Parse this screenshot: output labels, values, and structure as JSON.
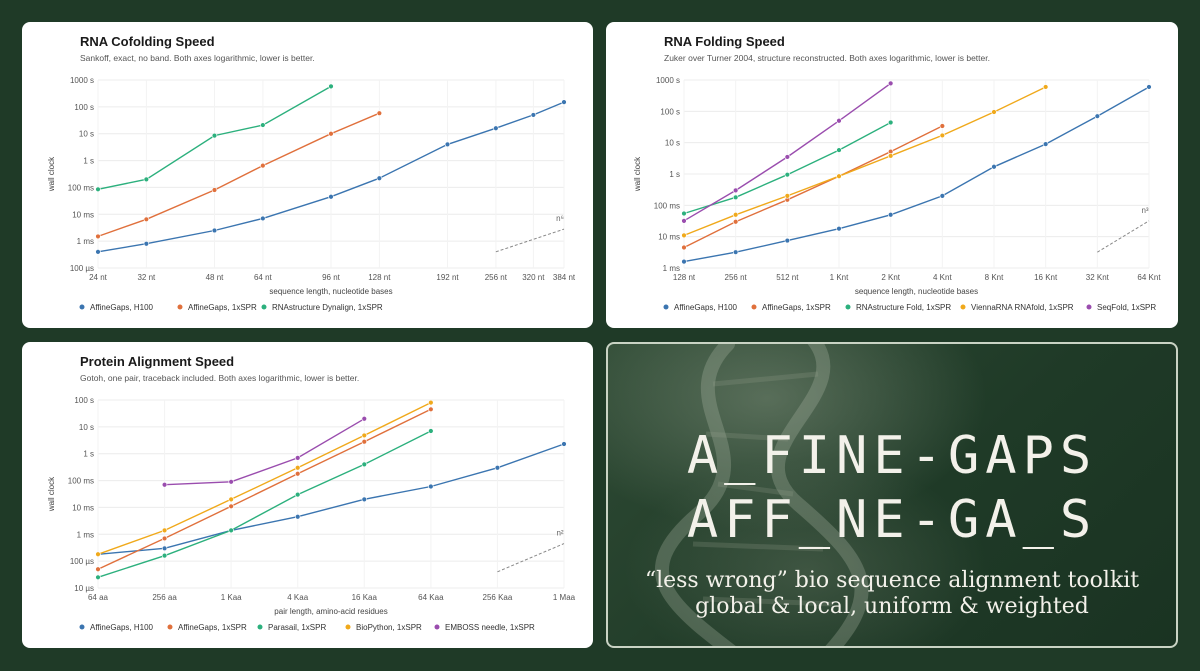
{
  "colors": {
    "blue": "#3b75b0",
    "orange": "#e0703c",
    "green": "#2cb07d",
    "yellow": "#f0a91b",
    "purple": "#9a4dae",
    "background": "#1f3a27"
  },
  "banner": {
    "line1": "A_FINE-GAPS",
    "line2": "AFF_NE-GA_S",
    "line3": "“less wrong” bio sequence alignment toolkit",
    "line4": "global & local, uniform & weighted"
  },
  "chart_data": [
    {
      "id": "cofold",
      "type": "line",
      "title": "RNA Cofolding Speed",
      "subtitle": "Sankoff, exact, no band. Both axes logarithmic, lower is better.",
      "xlabel": "sequence length, nucleotide bases",
      "ylabel": "wall clock",
      "x_scale": "log",
      "y_scale": "log",
      "xlim": [
        24,
        384
      ],
      "ylim": [
        0.0001,
        1000
      ],
      "x_ticks": [
        24,
        32,
        48,
        64,
        96,
        128,
        192,
        256,
        320,
        384
      ],
      "x_tick_labels": [
        "24 nt",
        "32 nt",
        "48 nt",
        "64 nt",
        "96 nt",
        "128 nt",
        "192 nt",
        "256 nt",
        "320 nt",
        "384 nt"
      ],
      "y_ticks": [
        0.0001,
        0.001,
        0.01,
        0.1,
        1,
        10,
        100,
        1000
      ],
      "y_tick_labels": [
        "100 µs",
        "1 ms",
        "10 ms",
        "100 ms",
        "1 s",
        "10 s",
        "100 s",
        "1000 s"
      ],
      "grid": true,
      "legend": "bottom",
      "trend": {
        "label": "n⁶",
        "x": [
          256,
          384
        ],
        "y": [
          0.0004,
          0.0028
        ]
      },
      "series": [
        {
          "name": "AffineGaps, H100",
          "color": "blue",
          "x": [
            24,
            32,
            48,
            64,
            96,
            128,
            192,
            256,
            320,
            384
          ],
          "y": [
            0.0004,
            0.0008,
            0.0025,
            0.007,
            0.045,
            0.22,
            4,
            16,
            50,
            150
          ]
        },
        {
          "name": "AffineGaps, 1xSPR",
          "color": "orange",
          "x": [
            24,
            32,
            48,
            64,
            96,
            128
          ],
          "y": [
            0.0015,
            0.0065,
            0.08,
            0.65,
            10,
            58
          ]
        },
        {
          "name": "RNAstructure Dynalign, 1xSPR",
          "color": "green",
          "x": [
            24,
            32,
            48,
            64,
            96
          ],
          "y": [
            0.085,
            0.2,
            8.5,
            21,
            580
          ]
        }
      ]
    },
    {
      "id": "fold",
      "type": "line",
      "title": "RNA Folding Speed",
      "subtitle": "Zuker over Turner 2004, structure reconstructed. Both axes logarithmic, lower is better.",
      "xlabel": "sequence length, nucleotide bases",
      "ylabel": "wall clock",
      "x_scale": "log",
      "y_scale": "log",
      "xlim": [
        128,
        65536
      ],
      "ylim": [
        0.001,
        1000
      ],
      "x_ticks": [
        128,
        256,
        512,
        1024,
        2048,
        4096,
        8192,
        16384,
        32768,
        65536
      ],
      "x_tick_labels": [
        "128 nt",
        "256 nt",
        "512 nt",
        "1 Knt",
        "2 Knt",
        "4 Knt",
        "8 Knt",
        "16 Knt",
        "32 Knt",
        "64 Knt"
      ],
      "y_ticks": [
        0.001,
        0.01,
        0.1,
        1,
        10,
        100,
        1000
      ],
      "y_tick_labels": [
        "1 ms",
        "10 ms",
        "100 ms",
        "1 s",
        "10 s",
        "100 s",
        "1000 s"
      ],
      "grid": true,
      "legend": "bottom",
      "trend": {
        "label": "n³",
        "x": [
          32768,
          65536
        ],
        "y": [
          0.0032,
          0.032
        ]
      },
      "series": [
        {
          "name": "AffineGaps, H100",
          "color": "blue",
          "x": [
            128,
            256,
            512,
            1024,
            2048,
            4096,
            8192,
            16384,
            32768,
            65536
          ],
          "y": [
            0.0016,
            0.0032,
            0.0075,
            0.018,
            0.05,
            0.2,
            1.7,
            9,
            70,
            600
          ]
        },
        {
          "name": "AffineGaps, 1xSPR",
          "color": "orange",
          "x": [
            128,
            256,
            512,
            1024,
            2048,
            4096
          ],
          "y": [
            0.0045,
            0.03,
            0.15,
            0.85,
            5.2,
            34
          ]
        },
        {
          "name": "RNAstructure Fold, 1xSPR",
          "color": "green",
          "x": [
            128,
            256,
            512,
            1024,
            2048
          ],
          "y": [
            0.055,
            0.18,
            0.95,
            5.8,
            44
          ]
        },
        {
          "name": "ViennaRNA RNAfold, 1xSPR",
          "color": "yellow",
          "x": [
            128,
            256,
            512,
            1024,
            2048,
            4096,
            8192,
            16384
          ],
          "y": [
            0.011,
            0.05,
            0.2,
            0.85,
            3.8,
            17,
            95,
            600
          ]
        },
        {
          "name": "SeqFold, 1xSPR",
          "color": "purple",
          "x": [
            128,
            256,
            512,
            1024,
            2048
          ],
          "y": [
            0.032,
            0.3,
            3.5,
            50,
            780
          ]
        }
      ]
    },
    {
      "id": "prot",
      "type": "line",
      "title": "Protein Alignment Speed",
      "subtitle": "Gotoh, one pair, traceback included. Both axes logarithmic, lower is better.",
      "xlabel": "pair length, amino-acid residues",
      "ylabel": "wall clock",
      "x_scale": "log",
      "y_scale": "log",
      "xlim": [
        64,
        1048576
      ],
      "ylim": [
        1e-05,
        100
      ],
      "x_ticks": [
        64,
        256,
        1024,
        4096,
        16384,
        65536,
        262144,
        1048576
      ],
      "x_tick_labels": [
        "64 aa",
        "256 aa",
        "1 Kaa",
        "4 Kaa",
        "16 Kaa",
        "64 Kaa",
        "256 Kaa",
        "1 Maa"
      ],
      "y_ticks": [
        1e-05,
        0.0001,
        0.001,
        0.01,
        0.1,
        1,
        10,
        100
      ],
      "y_tick_labels": [
        "10 µs",
        "100 µs",
        "1 ms",
        "10 ms",
        "100 ms",
        "1 s",
        "10 s",
        "100 s"
      ],
      "grid": true,
      "legend": "bottom",
      "trend": {
        "label": "n²",
        "x": [
          262144,
          1048576
        ],
        "y": [
          4e-05,
          0.00045
        ]
      },
      "series": [
        {
          "name": "AffineGaps, H100",
          "color": "blue",
          "x": [
            64,
            256,
            1024,
            4096,
            16384,
            65536,
            262144,
            1048576
          ],
          "y": [
            0.00018,
            0.0003,
            0.0014,
            0.0045,
            0.02,
            0.06,
            0.3,
            2.3
          ]
        },
        {
          "name": "AffineGaps, 1xSPR",
          "color": "orange",
          "x": [
            64,
            256,
            1024,
            4096,
            16384,
            65536
          ],
          "y": [
            5e-05,
            0.0007,
            0.011,
            0.18,
            2.8,
            45
          ]
        },
        {
          "name": "Parasail, 1xSPR",
          "color": "green",
          "x": [
            64,
            256,
            1024,
            4096,
            16384,
            65536
          ],
          "y": [
            2.5e-05,
            0.00016,
            0.0014,
            0.03,
            0.4,
            7
          ]
        },
        {
          "name": "BioPython, 1xSPR",
          "color": "yellow",
          "x": [
            64,
            256,
            1024,
            4096,
            16384,
            65536
          ],
          "y": [
            0.00018,
            0.0014,
            0.02,
            0.3,
            4.8,
            80
          ]
        },
        {
          "name": "EMBOSS needle, 1xSPR",
          "color": "purple",
          "x": [
            256,
            1024,
            4096,
            16384
          ],
          "y": [
            0.07,
            0.09,
            0.7,
            20
          ]
        }
      ]
    }
  ]
}
